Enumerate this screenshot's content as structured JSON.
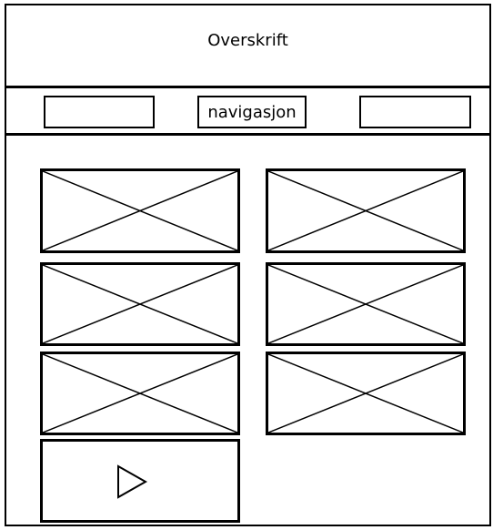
{
  "header": {
    "title": "Overskrift"
  },
  "nav": {
    "left_label": "",
    "center_label": "navigasjon",
    "right_label": ""
  },
  "gallery": {
    "image_placeholders": 6,
    "video_placeholder": {
      "icon": "play-icon"
    }
  }
}
